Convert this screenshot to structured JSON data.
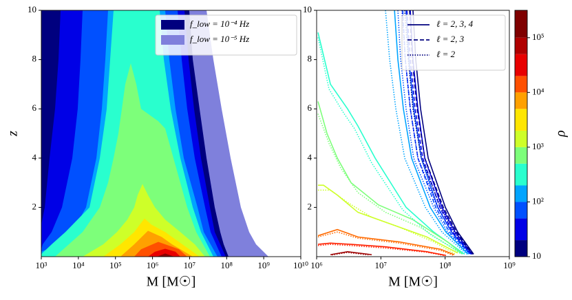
{
  "chart_data": [
    {
      "type": "contourf",
      "xlabel": "M [M☉]",
      "ylabel": "z",
      "xlog": true,
      "xlim": [
        1000.0,
        10000000000.0
      ],
      "xticks": [
        {
          "value": 1000.0,
          "label": "10³"
        },
        {
          "value": 10000.0,
          "label": "10⁴"
        },
        {
          "value": 100000.0,
          "label": "10⁵"
        },
        {
          "value": 1000000.0,
          "label": "10⁶"
        },
        {
          "value": 10000000.0,
          "label": "10⁷"
        },
        {
          "value": 100000000.0,
          "label": "10⁸"
        },
        {
          "value": 1000000000.0,
          "label": "10⁹"
        },
        {
          "value": 10000000000.0,
          "label": "10¹⁰"
        }
      ],
      "ylim": [
        0,
        10
      ],
      "yticks": [
        2,
        4,
        6,
        8,
        10
      ],
      "legend_loc": "upper right",
      "legend": [
        {
          "label": "f_low = 10⁻⁴ Hz",
          "color": "#00007f"
        },
        {
          "label": "f_low = 10⁻⁵ Hz",
          "color": "#7f80dc"
        }
      ],
      "extra_regions": [
        {
          "color": "#7f80dc",
          "x": [
            1000.0,
            1000.0,
            28600000.0,
            43800000.0,
            73200000.0,
            128000000.0,
            242000000.0,
            405000000.0,
            621000000.0,
            1340000000.0
          ],
          "y": [
            0,
            10,
            10,
            8,
            6,
            4,
            2,
            1,
            0.5,
            0
          ]
        }
      ],
      "regions": [
        {
          "color": "#00007f",
          "x": [
            1000.0,
            1000.0,
            9800000.0,
            12200000.0,
            18600000.0,
            28600000.0,
            47700000.0,
            67200000.0,
            83200000.0,
            112000000.0
          ],
          "y": [
            0,
            10,
            10,
            8,
            6,
            4,
            2,
            1,
            0.5,
            0
          ]
        },
        {
          "color": "#0000e6",
          "x": [
            1000.0,
            1000.0,
            1240.0,
            1670.0,
            2350.0,
            2910.0,
            3310.0,
            7270000.0,
            9400000.0,
            13200000.0,
            20300000.0,
            35400000.0,
            47700000.0,
            94600000.0
          ],
          "y": [
            0,
            1.3,
            2,
            4,
            6,
            8,
            10,
            10,
            8,
            6,
            4,
            2,
            1,
            0
          ]
        },
        {
          "color": "#0050ff",
          "x": [
            1000.0,
            1000.0,
            1090.0,
            1900.0,
            3610.0,
            6850.0,
            9600.0,
            11400.0,
            13000.0,
            4740000.0,
            6130000.0,
            8630000.0,
            13800000.0,
            26200000.0,
            36900000.0,
            73200000.0
          ],
          "y": [
            0,
            0.3,
            0.5,
            1,
            2,
            4,
            6,
            8,
            10,
            10,
            8,
            6,
            4,
            2,
            1,
            0
          ]
        },
        {
          "color": "#00a4ff",
          "x": [
            1000.0,
            1000.0,
            2910.0,
            6850.0,
            16100.0,
            30600.0,
            43000.0,
            53300.0,
            63200.0,
            2200000.0,
            2840000.0,
            4170000.0,
            6970000.0,
            16400000.0,
            24100000.0,
            56600000.0
          ],
          "y": [
            0,
            0.2,
            0.5,
            1,
            2,
            4,
            6,
            8,
            10,
            10,
            8,
            6,
            4,
            2,
            1,
            0
          ]
        },
        {
          "color": "#29ffce",
          "x": [
            1000.0,
            1000.0,
            1900.0,
            4470.0,
            20000.0,
            37900.0,
            58100.0,
            71900.0,
            89000.0,
            1560000.0,
            2020000.0,
            3100000.0,
            5630000.0,
            12200000.0,
            20300000.0,
            43800000.0
          ],
          "y": [
            0,
            0.1,
            0.5,
            1,
            2,
            4,
            6,
            8,
            10,
            10,
            8,
            6,
            4,
            2,
            1,
            0
          ]
        },
        {
          "color": "#7dff7a",
          "x": [
            2350.0,
            5530.0,
            13000.0,
            37900.0,
            63200.0,
            89000.0,
            120000.0,
            149000.0,
            184000.0,
            259000.0,
            365000.0,
            492000.0,
            1430000.0,
            2200000.0,
            3370000.0,
            5630000.0,
            8630000.0,
            15100000.0,
            23100000.0,
            35400000.0
          ],
          "y": [
            0,
            0.5,
            1,
            2,
            3,
            4,
            5,
            6,
            7,
            7.85,
            7,
            6,
            5.5,
            5.2,
            4.2,
            3,
            2,
            1,
            0.5,
            0
          ]
        },
        {
          "color": "#ceff29",
          "x": [
            13000.0,
            46900.0,
            110000.0,
            209000.0,
            321000.0,
            397000.0,
            536000.0,
            755000.0,
            1160000.0,
            2200000.0,
            5630000.0,
            13800000.0,
            26200000.0
          ],
          "y": [
            0,
            0.5,
            1,
            1.5,
            2,
            2.5,
            2.95,
            2.5,
            2,
            1.5,
            1,
            0.5,
            0
          ]
        },
        {
          "color": "#ffe600",
          "x": [
            46900.0,
            136000.0,
            321000.0,
            452000.0,
            610000.0,
            935000.0,
            2200000.0,
            6400000.0,
            18600000.0
          ],
          "y": [
            0,
            0.5,
            1,
            1.3,
            1.55,
            1.3,
            1,
            0.5,
            0
          ]
        },
        {
          "color": "#ffa000",
          "x": [
            136000.0,
            321000.0,
            755000.0,
            1770000.0,
            3370000.0,
            12200000.0
          ],
          "y": [
            0,
            0.5,
            1.05,
            0.8,
            0.5,
            0
          ]
        },
        {
          "color": "#ff5000",
          "x": [
            321000.0,
            492000.0,
            1430000.0,
            3370000.0,
            5160000.0,
            8630000.0
          ],
          "y": [
            0,
            0.3,
            0.6,
            0.4,
            0.3,
            0
          ]
        },
        {
          "color": "#e80000",
          "x": [
            755000.0,
            1160000.0,
            2200000.0,
            4170000.0,
            5630000.0
          ],
          "y": [
            0,
            0.2,
            0.32,
            0.2,
            0
          ]
        },
        {
          "color": "#8b0000",
          "x": [
            1320000.0,
            2200000.0,
            3830000.0
          ],
          "y": [
            0,
            0.13,
            0
          ]
        }
      ]
    },
    {
      "type": "contour",
      "xlabel": "M [M☉]",
      "xlog": true,
      "xlim": [
        1000000.0,
        1000000000.0
      ],
      "xticks": [
        {
          "value": 1000000.0,
          "label": "10⁶"
        },
        {
          "value": 10000000.0,
          "label": "10⁷"
        },
        {
          "value": 100000000.0,
          "label": "10⁸"
        },
        {
          "value": 1000000000.0,
          "label": "10⁹"
        }
      ],
      "ylim": [
        0,
        10
      ],
      "yticks": [
        2,
        4,
        6,
        8,
        10
      ],
      "legend_loc": "upper right",
      "legend": [
        {
          "label": "ℓ = 2, 3, 4",
          "dash": "solid",
          "color": "#00007f"
        },
        {
          "label": "ℓ = 2, 3",
          "dash": "dashed",
          "color": "#00007f"
        },
        {
          "label": "ℓ = 2",
          "dash": "dotted",
          "color": "#00007f"
        }
      ],
      "lines": [
        {
          "dash": "solid",
          "color": "#00007f",
          "x": [
            31600000.0,
            34900000.0,
            41500000.0,
            54500000.0,
            101000000.0,
            157000000.0,
            278000000.0
          ],
          "y": [
            10,
            8,
            6,
            4,
            2,
            1,
            0.1
          ]
        },
        {
          "dash": "solid",
          "color": "#0000e6",
          "x": [
            28700000.0,
            31600000.0,
            37700000.0,
            48200000.0,
            89300000.0,
            143000000.0,
            264000000.0
          ],
          "y": [
            10,
            8,
            6,
            4,
            2,
            1,
            0.1
          ]
        },
        {
          "dash": "solid",
          "color": "#0050ff",
          "x": [
            24700000.0,
            27300000.0,
            32400000.0,
            42600000.0,
            76900000.0,
            126000000.0,
            251000000.0
          ],
          "y": [
            10,
            8,
            6,
            4,
            2,
            1,
            0.1
          ]
        },
        {
          "dash": "solid",
          "color": "#00a4ff",
          "x": [
            16300000.0,
            18400000.0,
            22400000.0,
            30100000.0,
            58700000.0,
            103000000.0,
            228000000.0
          ],
          "y": [
            10,
            8,
            6,
            4,
            2,
            1,
            0.1
          ]
        },
        {
          "dash": "solid",
          "color": "#29ffce",
          "x": [
            1050000.0,
            1640000.0,
            3030000.0,
            4400000.0,
            8150000.0,
            24700000.0,
            66400000.0,
            201000000.0
          ],
          "y": [
            9.1,
            7,
            6,
            5.3,
            4,
            2,
            1,
            0.1
          ]
        },
        {
          "dash": "solid",
          "color": "#7dff7a",
          "x": [
            1050000.0,
            1450000.0,
            2100000.0,
            3440000.0,
            9200000.0,
            31600000.0,
            109000000.0,
            187000000.0
          ],
          "y": [
            6.3,
            5,
            4,
            3,
            2.1,
            1.5,
            0.6,
            0.1
          ]
        },
        {
          "dash": "solid",
          "color": "#ceff29",
          "x": [
            1050000.0,
            1280000.0,
            2100000.0,
            4400000.0,
            11800000.0,
            51900000.0,
            157000000.0
          ],
          "y": [
            2.9,
            2.9,
            2.5,
            1.8,
            1.4,
            0.8,
            0.15
          ]
        },
        {
          "dash": "solid",
          "color": "#ff6a00",
          "x": [
            1050000.0,
            2100000.0,
            4400000.0,
            19300000.0,
            85000000.0,
            139000000.0
          ],
          "y": [
            0.85,
            1.1,
            0.8,
            0.6,
            0.3,
            0.08
          ]
        },
        {
          "dash": "solid",
          "color": "#ff2000",
          "x": [
            1050000.0,
            1640000.0,
            3440000.0,
            11800000.0,
            51900000.0,
            103000000.0
          ],
          "y": [
            0.5,
            0.55,
            0.5,
            0.4,
            0.2,
            0.05
          ]
        },
        {
          "dash": "solid",
          "color": "#9c0000",
          "x": [
            1640000.0,
            3030000.0,
            7200000.0
          ],
          "y": [
            0.08,
            0.2,
            0.08
          ]
        },
        {
          "dash": "dashed",
          "color": "#00007f",
          "x": [
            28000000.0,
            30900000.0,
            36700000.0,
            48200000.0,
            93800000.0,
            150000000.0,
            271000000.0
          ],
          "y": [
            10,
            8,
            6,
            4,
            2,
            1,
            0.1
          ]
        },
        {
          "dash": "dashed",
          "color": "#0000e6",
          "x": [
            25400000.0,
            28700000.0,
            34100000.0,
            44800000.0,
            83000000.0,
            132000000.0,
            258000000.0
          ],
          "y": [
            10,
            8,
            6,
            4,
            2,
            1,
            0.1
          ]
        },
        {
          "dash": "dashed",
          "color": "#0050ff",
          "x": [
            21900000.0,
            24000000.0,
            28700000.0,
            37700000.0,
            71500000.0,
            117000000.0,
            245000000.0
          ],
          "y": [
            10,
            8,
            6,
            4,
            2,
            1,
            0.1
          ]
        },
        {
          "dash": "dotted",
          "color": "#00007f",
          "x": [
            23500000.0,
            26700000.0,
            31600000.0,
            42600000.0,
            85000000.0,
            139000000.0,
            264000000.0
          ],
          "y": [
            10,
            8,
            6,
            4,
            2,
            1,
            0.1
          ]
        },
        {
          "dash": "dotted",
          "color": "#0000e6",
          "x": [
            21300000.0,
            24000000.0,
            28700000.0,
            37700000.0,
            76900000.0,
            126000000.0,
            251000000.0
          ],
          "y": [
            10,
            8,
            6,
            4,
            2,
            1,
            0.1
          ]
        },
        {
          "dash": "dotted",
          "color": "#0050ff",
          "x": [
            18400000.0,
            20300000.0,
            24700000.0,
            32400000.0,
            66400000.0,
            109000000.0,
            239000000.0
          ],
          "y": [
            10,
            8,
            6,
            4,
            2,
            1,
            0.1
          ]
        },
        {
          "dash": "dotted",
          "color": "#00a4ff",
          "x": [
            11800000.0,
            13700000.0,
            17100000.0,
            23500000.0,
            49300000.0,
            89300000.0,
            217000000.0
          ],
          "y": [
            10,
            8,
            6,
            4,
            2,
            1,
            0.1
          ]
        },
        {
          "dash": "dotted",
          "color": "#29ffce",
          "x": [
            1050000.0,
            1560000.0,
            2680000.0,
            3880000.0,
            7200000.0,
            21900000.0,
            58700000.0,
            187000000.0
          ],
          "y": [
            8.9,
            6.8,
            5.8,
            5.2,
            3.8,
            1.9,
            0.9,
            0.1
          ]
        },
        {
          "dash": "dotted",
          "color": "#7dff7a",
          "x": [
            1050000.0,
            1560000.0,
            2370000.0,
            4400000.0,
            11800000.0,
            40500000.0,
            123000000.0,
            178000000.0
          ],
          "y": [
            5.8,
            4.6,
            3.6,
            2.6,
            1.8,
            1.2,
            0.4,
            0.1
          ]
        },
        {
          "dash": "dotted",
          "color": "#ceff29",
          "x": [
            1050000.0,
            1640000.0,
            3030000.0,
            7200000.0,
            19300000.0,
            66400000.0,
            146000000.0
          ],
          "y": [
            2.7,
            2.7,
            2.2,
            1.6,
            1.2,
            0.6,
            0.1
          ]
        },
        {
          "dash": "dotted",
          "color": "#ff6a00",
          "x": [
            1050000.0,
            2100000.0,
            4400000.0,
            19300000.0,
            85000000.0,
            132000000.0
          ],
          "y": [
            0.8,
            1.0,
            0.75,
            0.55,
            0.25,
            0.06
          ]
        },
        {
          "dash": "dotted",
          "color": "#ff2000",
          "x": [
            1050000.0,
            1640000.0,
            3440000.0,
            11800000.0,
            51900000.0,
            98600000.0
          ],
          "y": [
            0.45,
            0.5,
            0.45,
            0.35,
            0.18,
            0.04
          ]
        },
        {
          "dash": "dotted",
          "color": "#9c0000",
          "x": [
            1720000.0,
            3030000.0,
            6370000.0
          ],
          "y": [
            0.07,
            0.17,
            0.07
          ]
        }
      ]
    },
    {
      "type": "colorbar",
      "label": "ρ",
      "log": true,
      "levels": [
        10,
        20,
        50,
        100,
        200,
        500,
        1000,
        2000,
        5000,
        10000,
        20000,
        50000,
        100000,
        316228
      ],
      "colors": [
        "#00007f",
        "#0000e6",
        "#0050ff",
        "#00a4ff",
        "#29ffce",
        "#7dff7a",
        "#ceff29",
        "#ffe600",
        "#ffa000",
        "#ff5000",
        "#e80000",
        "#b00000",
        "#7f0000"
      ],
      "ylim": [
        10,
        316228
      ],
      "yticks": [
        10,
        {
          "value": 100,
          "label": "10²"
        },
        {
          "value": 1000,
          "label": "10³"
        },
        {
          "value": 10000,
          "label": "10⁴"
        },
        {
          "value": 100000,
          "label": "10⁵"
        }
      ]
    }
  ]
}
